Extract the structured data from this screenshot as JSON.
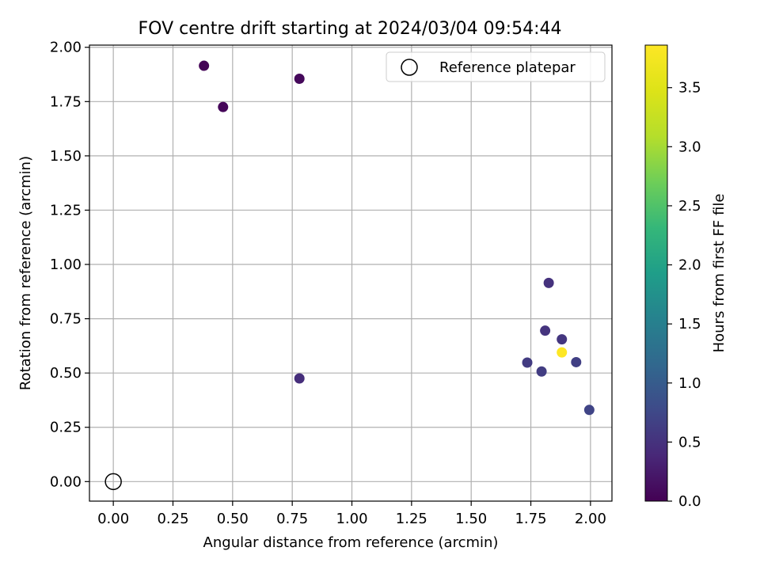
{
  "chart_data": {
    "type": "scatter",
    "title": "FOV centre drift starting at 2024/03/04 09:54:44",
    "xlabel": "Angular distance from reference (arcmin)",
    "ylabel": "Rotation from reference (arcmin)",
    "xlim": [
      -0.1,
      2.09
    ],
    "ylim": [
      -0.09,
      2.01
    ],
    "xticks": [
      "0.00",
      "0.25",
      "0.50",
      "0.75",
      "1.00",
      "1.25",
      "1.50",
      "1.75",
      "2.00"
    ],
    "yticks": [
      "0.00",
      "0.25",
      "0.50",
      "0.75",
      "1.00",
      "1.25",
      "1.50",
      "1.75",
      "2.00"
    ],
    "grid": true,
    "legend_position": "top-right",
    "reference": {
      "name": "Reference platepar",
      "x": 0.0,
      "y": 0.0
    },
    "points": [
      {
        "x": 0.38,
        "y": 1.915,
        "hours": 0.02
      },
      {
        "x": 0.46,
        "y": 1.725,
        "hours": 0.05
      },
      {
        "x": 0.78,
        "y": 1.855,
        "hours": 0.08
      },
      {
        "x": 0.78,
        "y": 0.475,
        "hours": 0.45
      },
      {
        "x": 1.825,
        "y": 0.915,
        "hours": 0.5
      },
      {
        "x": 1.81,
        "y": 0.695,
        "hours": 0.52
      },
      {
        "x": 1.88,
        "y": 0.655,
        "hours": 0.55
      },
      {
        "x": 1.735,
        "y": 0.548,
        "hours": 0.6
      },
      {
        "x": 1.795,
        "y": 0.507,
        "hours": 0.62
      },
      {
        "x": 1.94,
        "y": 0.55,
        "hours": 0.65
      },
      {
        "x": 1.995,
        "y": 0.33,
        "hours": 0.7
      },
      {
        "x": 1.88,
        "y": 0.595,
        "hours": 3.86
      }
    ],
    "colorbar": {
      "label": "Hours from first FF file",
      "colormap": "viridis",
      "range": [
        0.0,
        3.86
      ],
      "ticks": [
        "0.0",
        "0.5",
        "1.0",
        "1.5",
        "2.0",
        "2.5",
        "3.0",
        "3.5"
      ]
    }
  }
}
